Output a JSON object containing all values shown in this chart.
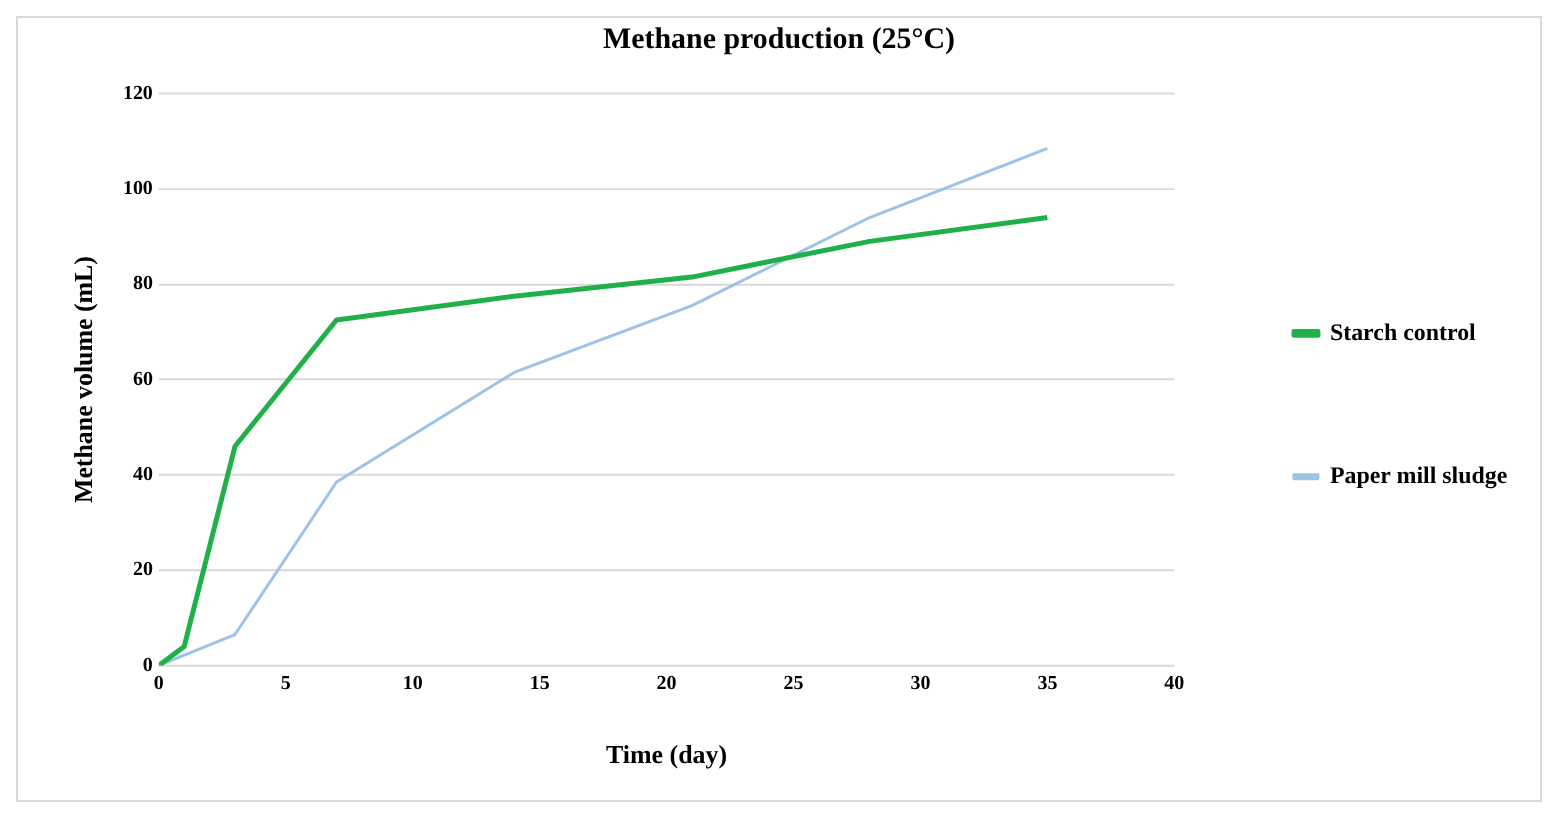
{
  "chart_data": {
    "type": "line",
    "title": "Methane production (25°C)",
    "xlabel": "Time (day)",
    "ylabel": "Methane volume (mL)",
    "series": [
      {
        "name": "Starch control",
        "color": "#1fb04a",
        "x": [
          0,
          1,
          3,
          7,
          14,
          21,
          28,
          35
        ],
        "values": [
          0,
          4,
          46,
          72.5,
          77.5,
          81.5,
          89,
          94
        ]
      },
      {
        "name": "Paper mill sludge",
        "color": "#9dc3e6",
        "x": [
          0,
          3,
          7,
          14,
          21,
          28,
          35
        ],
        "values": [
          0,
          6.5,
          38.5,
          61.5,
          75.5,
          94,
          108.5
        ]
      }
    ],
    "xlim": [
      0,
      40
    ],
    "xticks": [
      0,
      5,
      10,
      15,
      20,
      25,
      30,
      35,
      40
    ],
    "ylim": [
      0,
      120
    ],
    "yticks": [
      0,
      20,
      40,
      60,
      80,
      100,
      120
    ],
    "grid": "y",
    "legend": "right",
    "marker": "none",
    "line_style": "solid"
  }
}
